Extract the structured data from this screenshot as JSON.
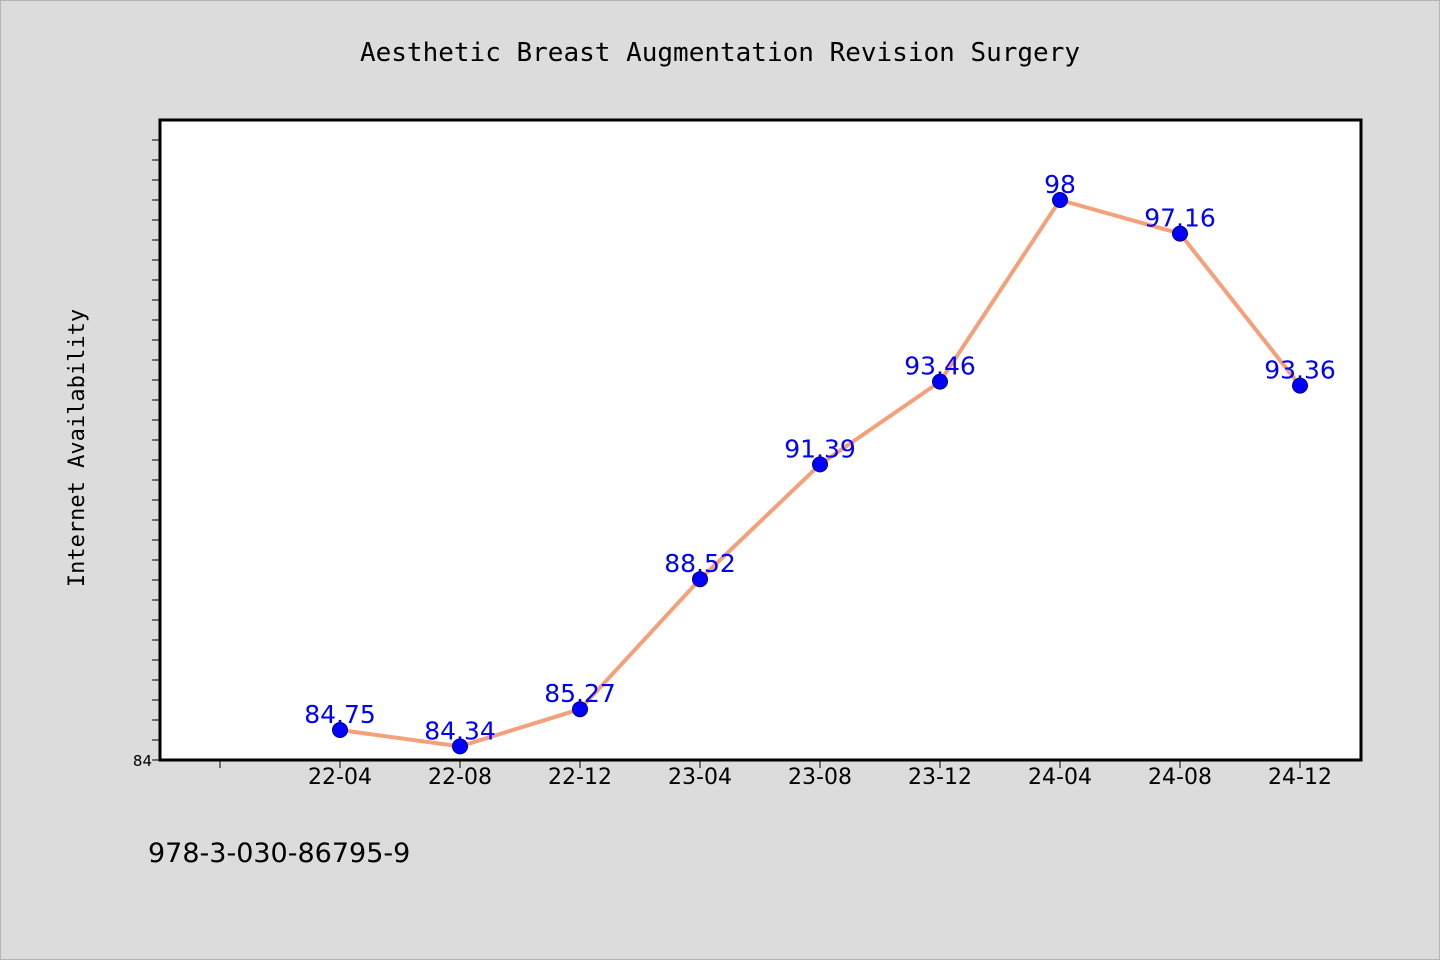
{
  "chart_data": {
    "type": "line",
    "title": "Aesthetic Breast Augmentation Revision Surgery",
    "xlabel": "",
    "ylabel": "Internet Availability",
    "categories": [
      "22-04",
      "22-08",
      "22-12",
      "23-04",
      "23-08",
      "23-12",
      "24-04",
      "24-08",
      "24-12"
    ],
    "series": [
      {
        "values": [
          84.75,
          84.34,
          85.27,
          88.52,
          91.39,
          93.46,
          98,
          97.16,
          93.36
        ],
        "labels": [
          "84.75",
          "84.34",
          "85.27",
          "88.52",
          "91.39",
          "93.46",
          "98",
          "97.16",
          "93.36"
        ]
      }
    ],
    "ylim": [
      84,
      100
    ],
    "y_tick_labels": [
      "84"
    ],
    "grid": false,
    "legend": "none",
    "colors": {
      "line": "#f4a07a",
      "marker": "#0000ff",
      "marker_edge": "#000080",
      "data_label": "#0000ff",
      "plot_background": "#ffffff",
      "page_background": "#dcdcdc"
    }
  },
  "footer": {
    "code": "978-3-030-86795-9"
  }
}
